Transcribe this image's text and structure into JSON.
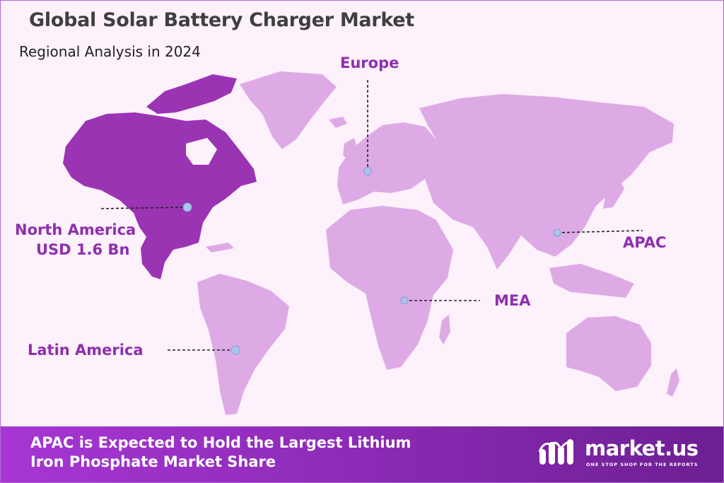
{
  "header": {
    "title": "Global Solar Battery Charger Market",
    "subtitle": "Regional Analysis in 2024"
  },
  "regions": {
    "north_america": {
      "name": "North America",
      "value": "USD 1.6 Bn",
      "highlighted": true
    },
    "europe": {
      "name": "Europe",
      "highlighted": false
    },
    "apac": {
      "name": "APAC",
      "highlighted": false
    },
    "mea": {
      "name": "MEA",
      "highlighted": false
    },
    "latin_america": {
      "name": "Latin America",
      "highlighted": false
    }
  },
  "footer": {
    "line1": "APAC is Expected to Hold the Largest Lithium",
    "line2": "Iron Phosphate Market Share"
  },
  "brand": {
    "name": "market.us",
    "tagline": "ONE STOP SHOP FOR THE REPORTS"
  },
  "colors": {
    "highlight_fill": "#9a34b3",
    "land_fill": "#deaae6",
    "label": "#8e2fae",
    "marker": "#a9c5ec",
    "footer_bg": "#8f2cb9"
  }
}
